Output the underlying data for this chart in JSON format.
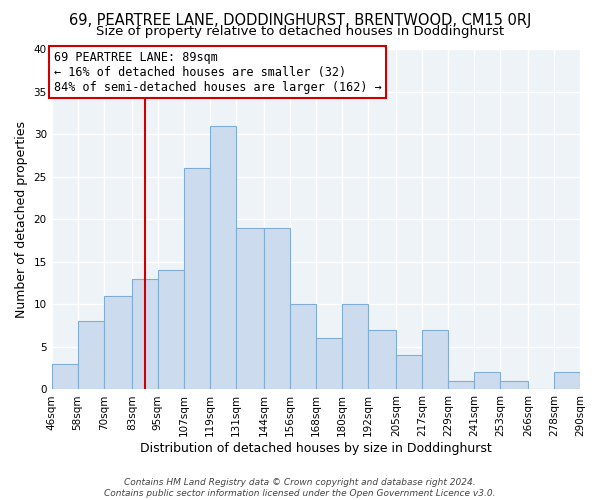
{
  "title": "69, PEARTREE LANE, DODDINGHURST, BRENTWOOD, CM15 0RJ",
  "subtitle": "Size of property relative to detached houses in Doddinghurst",
  "xlabel": "Distribution of detached houses by size in Doddinghurst",
  "ylabel": "Number of detached properties",
  "bin_labels": [
    "46sqm",
    "58sqm",
    "70sqm",
    "83sqm",
    "95sqm",
    "107sqm",
    "119sqm",
    "131sqm",
    "144sqm",
    "156sqm",
    "168sqm",
    "180sqm",
    "192sqm",
    "205sqm",
    "217sqm",
    "229sqm",
    "241sqm",
    "253sqm",
    "266sqm",
    "278sqm",
    "290sqm"
  ],
  "bar_heights": [
    3,
    8,
    11,
    13,
    14,
    26,
    31,
    19,
    19,
    10,
    6,
    10,
    7,
    4,
    7,
    1,
    2,
    1,
    0,
    2,
    0
  ],
  "bar_color": "#ccdcee",
  "bar_edge_color": "#7fadd4",
  "vline_x": 89,
  "vline_color": "#cc0000",
  "annotation_text": "69 PEARTREE LANE: 89sqm\n← 16% of detached houses are smaller (32)\n84% of semi-detached houses are larger (162) →",
  "annotation_box_edge_color": "#cc0000",
  "ylim": [
    0,
    40
  ],
  "yticks": [
    0,
    5,
    10,
    15,
    20,
    25,
    30,
    35,
    40
  ],
  "footer_line1": "Contains HM Land Registry data © Crown copyright and database right 2024.",
  "footer_line2": "Contains public sector information licensed under the Open Government Licence v3.0.",
  "bg_color": "#ffffff",
  "plot_bg_color": "#eef3f8",
  "grid_color": "#ffffff",
  "title_fontsize": 10.5,
  "subtitle_fontsize": 9.5,
  "axis_label_fontsize": 9,
  "tick_fontsize": 7.5,
  "annotation_fontsize": 8.5,
  "footer_fontsize": 6.5
}
